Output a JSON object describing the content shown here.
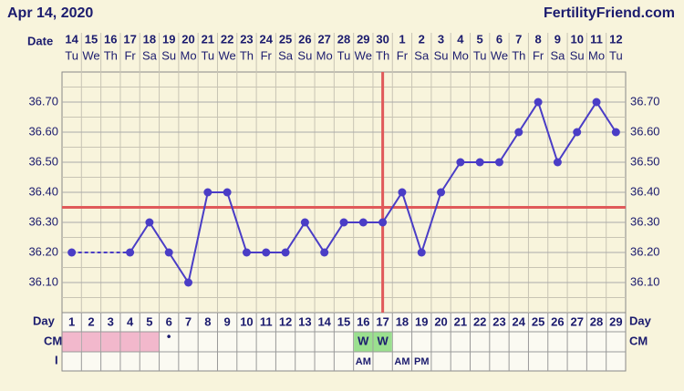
{
  "chart_data": {
    "type": "line",
    "title": "Apr 14, 2020",
    "site": "FertilityFriend.com",
    "date_label": "Date",
    "dates": [
      14,
      15,
      16,
      17,
      18,
      19,
      20,
      21,
      22,
      23,
      24,
      25,
      26,
      27,
      28,
      29,
      30,
      1,
      2,
      3,
      4,
      5,
      6,
      7,
      8,
      9,
      10,
      11,
      12
    ],
    "weekdays": [
      "Tu",
      "We",
      "Th",
      "Fr",
      "Sa",
      "Su",
      "Mo",
      "Tu",
      "We",
      "Th",
      "Fr",
      "Sa",
      "Su",
      "Mo",
      "Tu",
      "We",
      "Th",
      "Fr",
      "Sa",
      "Su",
      "Mo",
      "Tu",
      "We",
      "Th",
      "Fr",
      "Sa",
      "Su",
      "Mo",
      "Tu"
    ],
    "days": [
      1,
      2,
      3,
      4,
      5,
      6,
      7,
      8,
      9,
      10,
      11,
      12,
      13,
      14,
      15,
      16,
      17,
      18,
      19,
      20,
      21,
      22,
      23,
      24,
      25,
      26,
      27,
      28,
      29
    ],
    "values": [
      36.2,
      null,
      null,
      36.2,
      36.3,
      36.2,
      36.1,
      36.4,
      36.4,
      36.2,
      36.2,
      36.2,
      36.3,
      36.2,
      36.3,
      36.3,
      36.3,
      36.4,
      36.2,
      36.4,
      36.5,
      36.5,
      36.5,
      36.6,
      36.7,
      36.5,
      36.6,
      36.7,
      36.6
    ],
    "color": "#4a3dc6",
    "ylim": [
      36.0,
      36.8
    ],
    "yticks": [
      {
        "value": 36.1,
        "label": "36.10"
      },
      {
        "value": 36.2,
        "label": "36.20"
      },
      {
        "value": 36.3,
        "label": "36.30"
      },
      {
        "value": 36.4,
        "label": "36.40"
      },
      {
        "value": 36.5,
        "label": "36.50"
      },
      {
        "value": 36.6,
        "label": "36.60"
      },
      {
        "value": 36.7,
        "label": "36.70"
      }
    ],
    "coverline": 36.35,
    "ovulation_day": 17,
    "reference_color": "#e05a5a",
    "period_days": [
      1,
      2,
      3,
      4,
      5
    ],
    "period_color": "#f2b8cc",
    "day_label": "Day",
    "cm_label": "CM",
    "i_label": "I",
    "cm": [
      null,
      null,
      null,
      null,
      null,
      "•",
      null,
      null,
      null,
      null,
      null,
      null,
      null,
      null,
      null,
      "W",
      "W",
      null,
      null,
      null,
      null,
      null,
      null,
      null,
      null,
      null,
      null,
      null,
      null
    ],
    "cm_color": "#9be08f",
    "intercourse": [
      null,
      null,
      null,
      null,
      null,
      null,
      null,
      null,
      null,
      null,
      null,
      null,
      null,
      null,
      null,
      "AM",
      null,
      "AM",
      "PM",
      null,
      null,
      null,
      null,
      null,
      null,
      null,
      null,
      null,
      null
    ]
  }
}
